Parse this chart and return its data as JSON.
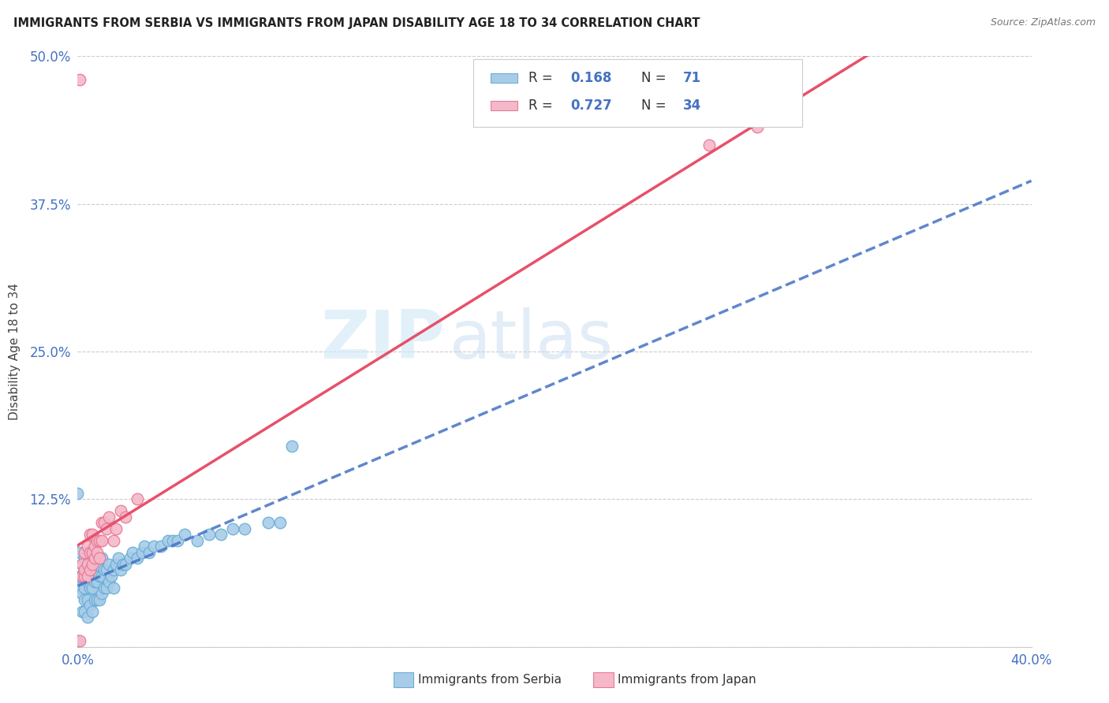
{
  "title": "IMMIGRANTS FROM SERBIA VS IMMIGRANTS FROM JAPAN DISABILITY AGE 18 TO 34 CORRELATION CHART",
  "source": "Source: ZipAtlas.com",
  "ylabel": "Disability Age 18 to 34",
  "xlim": [
    0.0,
    0.4
  ],
  "ylim": [
    0.0,
    0.5
  ],
  "xticks": [
    0.0,
    0.1,
    0.2,
    0.3,
    0.4
  ],
  "yticks": [
    0.0,
    0.125,
    0.25,
    0.375,
    0.5
  ],
  "xticklabels": [
    "0.0%",
    "",
    "",
    "",
    "40.0%"
  ],
  "yticklabels": [
    "",
    "12.5%",
    "25.0%",
    "37.5%",
    "50.0%"
  ],
  "watermark_zip": "ZIP",
  "watermark_atlas": "atlas",
  "serbia_color": "#a8cce8",
  "serbia_edge_color": "#6aaed6",
  "japan_color": "#f5b8c8",
  "japan_edge_color": "#e87a9a",
  "serbia_line_color": "#4472c4",
  "japan_line_color": "#e8506a",
  "serbia_points_x": [
    0.0,
    0.0,
    0.001,
    0.001,
    0.001,
    0.002,
    0.002,
    0.002,
    0.002,
    0.003,
    0.003,
    0.003,
    0.003,
    0.003,
    0.004,
    0.004,
    0.004,
    0.004,
    0.005,
    0.005,
    0.005,
    0.005,
    0.006,
    0.006,
    0.006,
    0.007,
    0.007,
    0.007,
    0.008,
    0.008,
    0.008,
    0.009,
    0.009,
    0.009,
    0.01,
    0.01,
    0.01,
    0.011,
    0.011,
    0.012,
    0.012,
    0.013,
    0.013,
    0.014,
    0.015,
    0.015,
    0.016,
    0.017,
    0.018,
    0.019,
    0.02,
    0.022,
    0.023,
    0.025,
    0.027,
    0.028,
    0.03,
    0.032,
    0.035,
    0.038,
    0.04,
    0.042,
    0.045,
    0.05,
    0.055,
    0.06,
    0.065,
    0.07,
    0.08,
    0.085,
    0.09
  ],
  "serbia_points_y": [
    0.13,
    0.005,
    0.05,
    0.06,
    0.08,
    0.03,
    0.045,
    0.06,
    0.07,
    0.03,
    0.04,
    0.05,
    0.065,
    0.075,
    0.025,
    0.04,
    0.055,
    0.07,
    0.035,
    0.05,
    0.065,
    0.08,
    0.03,
    0.05,
    0.07,
    0.04,
    0.055,
    0.075,
    0.04,
    0.055,
    0.07,
    0.04,
    0.06,
    0.075,
    0.045,
    0.06,
    0.075,
    0.05,
    0.065,
    0.05,
    0.065,
    0.055,
    0.07,
    0.06,
    0.05,
    0.065,
    0.07,
    0.075,
    0.065,
    0.07,
    0.07,
    0.075,
    0.08,
    0.075,
    0.08,
    0.085,
    0.08,
    0.085,
    0.085,
    0.09,
    0.09,
    0.09,
    0.095,
    0.09,
    0.095,
    0.095,
    0.1,
    0.1,
    0.105,
    0.105,
    0.17
  ],
  "japan_points_x": [
    0.001,
    0.001,
    0.002,
    0.002,
    0.003,
    0.003,
    0.003,
    0.004,
    0.004,
    0.004,
    0.005,
    0.005,
    0.005,
    0.006,
    0.006,
    0.006,
    0.007,
    0.007,
    0.008,
    0.008,
    0.009,
    0.009,
    0.01,
    0.01,
    0.011,
    0.012,
    0.013,
    0.015,
    0.016,
    0.018,
    0.02,
    0.025,
    0.265,
    0.285
  ],
  "japan_points_y": [
    0.48,
    0.005,
    0.06,
    0.07,
    0.06,
    0.065,
    0.08,
    0.06,
    0.07,
    0.085,
    0.065,
    0.08,
    0.095,
    0.07,
    0.08,
    0.095,
    0.075,
    0.085,
    0.08,
    0.09,
    0.075,
    0.09,
    0.09,
    0.105,
    0.105,
    0.1,
    0.11,
    0.09,
    0.1,
    0.115,
    0.11,
    0.125,
    0.425,
    0.44
  ]
}
